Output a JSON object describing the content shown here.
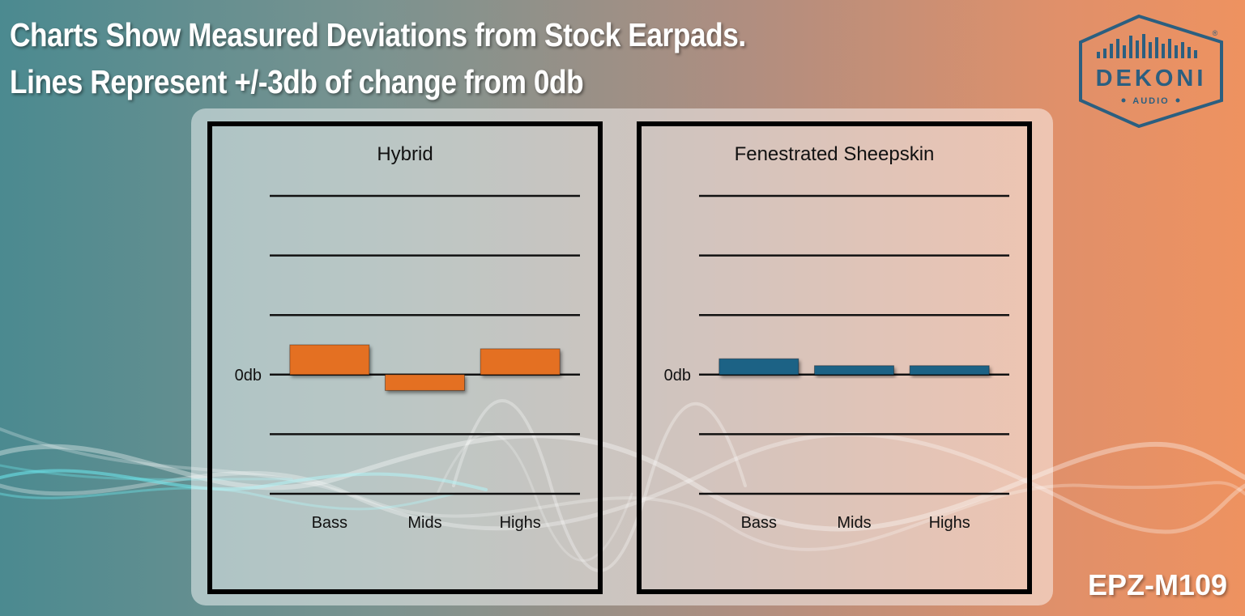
{
  "headline": {
    "line1": "Charts Show Measured Deviations from Stock Earpads.",
    "line2": "Lines Represent +/-3db of change from 0db"
  },
  "logo": {
    "brand": "DEKONI",
    "sub": "AUDIO",
    "registered": "®"
  },
  "product_code": "EPZ-M109",
  "colors": {
    "hybrid_bar": "#e47022",
    "sheepskin_bar": "#1e6285",
    "gridline": "#111111",
    "frame": "#000000",
    "logo": "#2b5f80"
  },
  "chart_data": [
    {
      "type": "bar",
      "title": "Hybrid",
      "categories": [
        "Bass",
        "Mids",
        "Highs"
      ],
      "values": [
        1.5,
        -0.8,
        1.3
      ],
      "ylim": [
        -6,
        9
      ],
      "gridlines": [
        -6,
        -3,
        0,
        3,
        6,
        9
      ],
      "zero_label": "0db",
      "xlabel": "",
      "ylabel": ""
    },
    {
      "type": "bar",
      "title": "Fenestrated Sheepskin",
      "categories": [
        "Bass",
        "Mids",
        "Highs"
      ],
      "values": [
        0.8,
        0.45,
        0.45
      ],
      "ylim": [
        -6,
        9
      ],
      "gridlines": [
        -6,
        -3,
        0,
        3,
        6,
        9
      ],
      "zero_label": "0db",
      "xlabel": "",
      "ylabel": ""
    }
  ]
}
